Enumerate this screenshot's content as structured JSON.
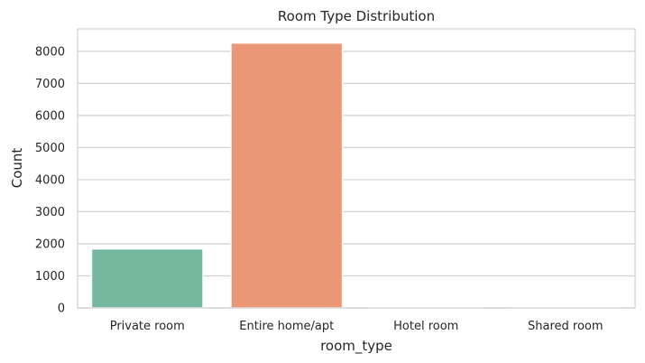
{
  "chart_data": {
    "type": "bar",
    "title": "Room Type Distribution",
    "xlabel": "room_type",
    "ylabel": "Count",
    "categories": [
      "Private room",
      "Entire home/apt",
      "Hotel room",
      "Shared room"
    ],
    "values": [
      1840,
      8260,
      8,
      5
    ],
    "colors": [
      "#76b7a0",
      "#ea9775",
      "#8da0cb",
      "#e78ac3"
    ],
    "ylim": [
      0,
      8700
    ],
    "yticks": [
      0,
      1000,
      2000,
      3000,
      4000,
      5000,
      6000,
      7000,
      8000
    ],
    "grid": "horizontal",
    "background": "#ffffff"
  }
}
